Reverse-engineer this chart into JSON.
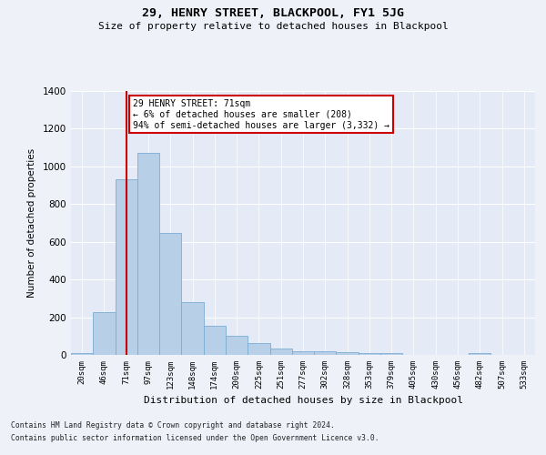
{
  "title": "29, HENRY STREET, BLACKPOOL, FY1 5JG",
  "subtitle": "Size of property relative to detached houses in Blackpool",
  "xlabel": "Distribution of detached houses by size in Blackpool",
  "ylabel": "Number of detached properties",
  "footnote1": "Contains HM Land Registry data © Crown copyright and database right 2024.",
  "footnote2": "Contains public sector information licensed under the Open Government Licence v3.0.",
  "annotation_title": "29 HENRY STREET: 71sqm",
  "annotation_line1": "← 6% of detached houses are smaller (208)",
  "annotation_line2": "94% of semi-detached houses are larger (3,332) →",
  "categories": [
    "20sqm",
    "46sqm",
    "71sqm",
    "97sqm",
    "123sqm",
    "148sqm",
    "174sqm",
    "200sqm",
    "225sqm",
    "251sqm",
    "277sqm",
    "302sqm",
    "328sqm",
    "353sqm",
    "379sqm",
    "405sqm",
    "430sqm",
    "456sqm",
    "482sqm",
    "507sqm",
    "533sqm"
  ],
  "values": [
    10,
    225,
    930,
    1070,
    645,
    280,
    155,
    100,
    65,
    35,
    20,
    18,
    15,
    12,
    10,
    0,
    0,
    0,
    10,
    0,
    0
  ],
  "bar_color": "#b8cfe8",
  "bar_edgecolor": "#7aadd4",
  "marker_color": "#cc0000",
  "background_color": "#eef2f8",
  "plot_background": "#e4eaf6",
  "annotation_box_color": "#ffffff",
  "annotation_border_color": "#cc0000",
  "ylim": [
    0,
    1400
  ],
  "yticks": [
    0,
    200,
    400,
    600,
    800,
    1000,
    1200,
    1400
  ],
  "marker_label": "71sqm"
}
